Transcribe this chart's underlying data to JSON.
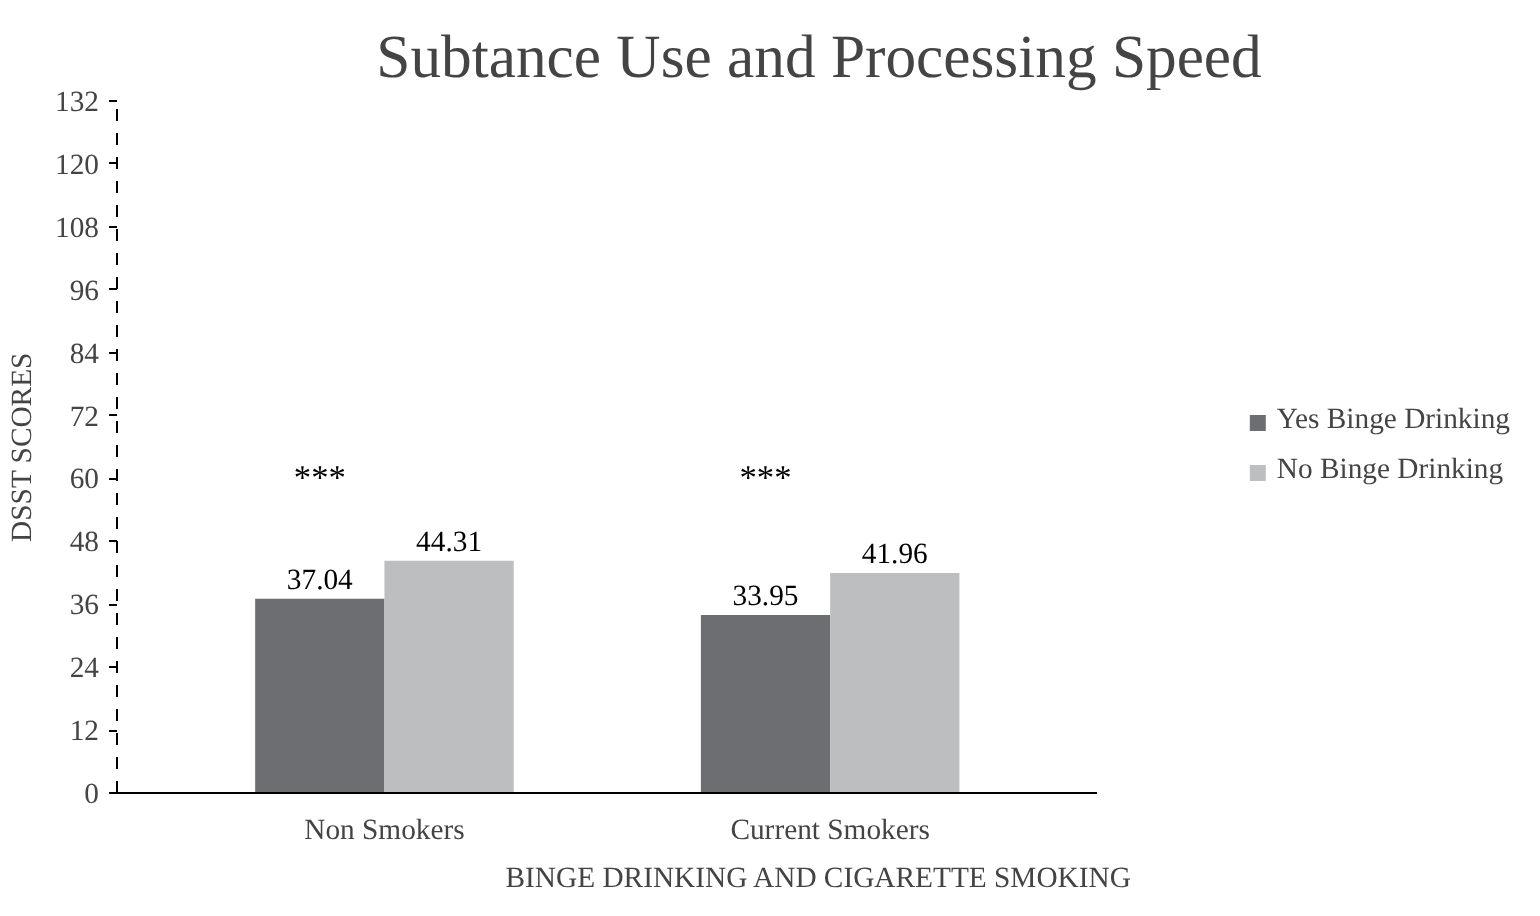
{
  "chart_data": {
    "type": "bar",
    "title": "Subtance Use and Processing Speed",
    "xlabel": "BINGE DRINKING AND CIGARETTE SMOKING",
    "ylabel": "DSST SCORES",
    "categories": [
      "Non Smokers",
      "Current Smokers"
    ],
    "series": [
      {
        "name": "Yes Binge Drinking",
        "color": "#6d6e71",
        "values": [
          37.04,
          33.95
        ]
      },
      {
        "name": "No Binge Drinking",
        "color": "#bcbec0",
        "values": [
          44.31,
          41.96
        ]
      }
    ],
    "ylim": [
      0,
      132
    ],
    "yticks": [
      0,
      12,
      24,
      36,
      48,
      60,
      72,
      84,
      96,
      108,
      120,
      132
    ],
    "data_labels": true,
    "grid": false,
    "legend": "right",
    "annotations": [
      "***",
      "***"
    ]
  }
}
